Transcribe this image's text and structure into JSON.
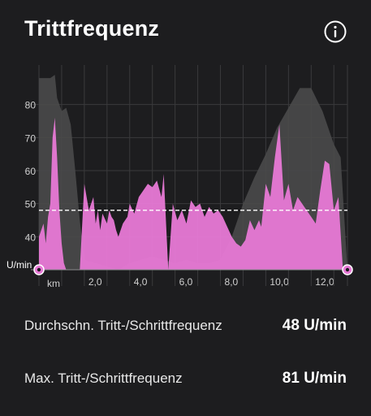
{
  "header": {
    "title": "Trittfrequenz",
    "info_icon": "info-circle-icon"
  },
  "colors": {
    "background": "#1d1d1f",
    "cadence_fill": "#e879d6",
    "elevation_fill": "#4a4a4a",
    "average_line": "#ffffff",
    "grid": "#3a3a3c",
    "marker": "#e879d6"
  },
  "chart_data": {
    "type": "area",
    "y_unit_label": "U/min",
    "x_unit_label": "km",
    "ylim": [
      30,
      90
    ],
    "xlim": [
      0,
      13.6
    ],
    "y_ticks": [
      "80",
      "70",
      "60",
      "50",
      "40"
    ],
    "x_ticks": [
      "2,0",
      "4,0",
      "6,0",
      "8,0",
      "10,0",
      "12,0"
    ],
    "average_line_value": 48,
    "grid": true,
    "series": [
      {
        "x": [
          0,
          0.2,
          0.3,
          0.4,
          0.5,
          0.6,
          0.7,
          0.8,
          0.9,
          1.0,
          1.1,
          1.2,
          1.3,
          1.4,
          1.6,
          1.8,
          2.0,
          2.2,
          2.4,
          2.5,
          2.6,
          2.7,
          2.8,
          3.0,
          3.1,
          3.2,
          3.3,
          3.4,
          3.5,
          3.7,
          3.9,
          4.0,
          4.2,
          4.4,
          4.6,
          4.8,
          5.0,
          5.2,
          5.4,
          5.5,
          5.7,
          5.9,
          6.1,
          6.3,
          6.5,
          6.7,
          6.9,
          7.1,
          7.3,
          7.5,
          7.7,
          7.9,
          8.1,
          8.3,
          8.5,
          8.7,
          8.9,
          9.1,
          9.3,
          9.5,
          9.7,
          9.8,
          10.0,
          10.2,
          10.4,
          10.6,
          10.8,
          11.0,
          11.2,
          11.4,
          11.6,
          11.8,
          12.0,
          12.2,
          12.4,
          12.6,
          12.8,
          13.0,
          13.2,
          13.4,
          13.6
        ],
        "values": [
          40,
          44,
          38,
          46,
          50,
          70,
          76,
          64,
          48,
          38,
          32,
          30,
          30,
          30,
          30,
          30,
          56,
          48,
          52,
          44,
          48,
          42,
          47,
          44,
          48,
          46,
          45,
          42,
          40,
          44,
          46,
          50,
          47,
          52,
          54,
          56,
          55,
          57,
          52,
          59,
          30,
          50,
          45,
          48,
          44,
          51,
          49,
          50,
          46,
          49,
          47,
          48,
          46,
          43,
          40,
          38,
          37,
          39,
          45,
          42,
          45,
          43,
          56,
          52,
          64,
          74,
          51,
          56,
          48,
          52,
          50,
          48,
          46,
          44,
          54,
          63,
          62,
          48,
          52,
          30,
          30
        ]
      },
      {
        "x": [
          0,
          0.5,
          0.7,
          0.8,
          1.0,
          1.2,
          1.4,
          1.6,
          1.8,
          2.0,
          2.5,
          3.0,
          3.5,
          4.0,
          4.5,
          5.0,
          5.5,
          6.0,
          6.5,
          7.0,
          7.5,
          8.0,
          8.5,
          9.0,
          9.5,
          10.0,
          10.5,
          11.0,
          11.5,
          12.0,
          12.5,
          13.0,
          13.3,
          13.6
        ],
        "values": [
          88,
          88,
          89,
          82,
          78,
          79,
          74,
          60,
          45,
          33,
          32,
          31,
          30,
          32,
          33,
          34,
          33,
          32,
          33,
          32,
          32,
          33,
          40,
          50,
          58,
          65,
          73,
          79,
          85,
          85,
          78,
          68,
          64,
          30
        ]
      }
    ]
  },
  "stats": {
    "avg_label": "Durchschn. Tritt-/Schrittfrequenz",
    "avg_value": "48 U/min",
    "max_label": "Max. Tritt-/Schrittfrequenz",
    "max_value": "81 U/min"
  }
}
